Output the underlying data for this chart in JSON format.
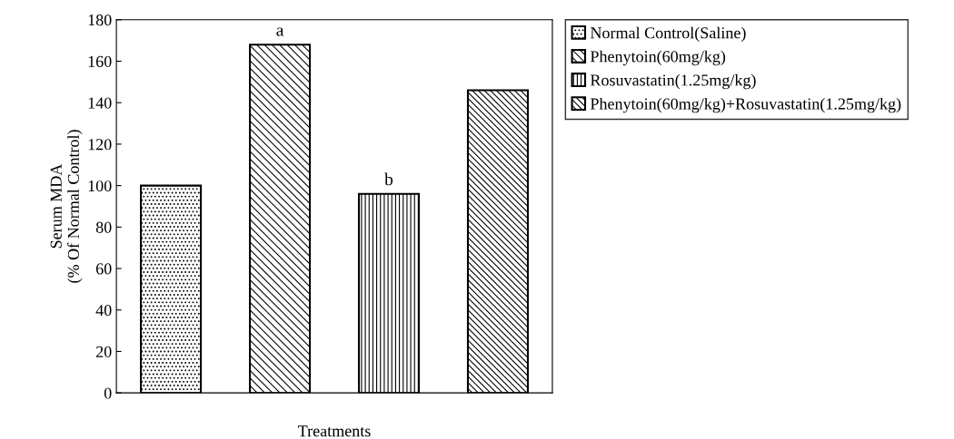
{
  "chart_data": {
    "type": "bar",
    "categories": [
      null,
      null,
      null,
      null
    ],
    "series": [
      {
        "name": "Normal Control(Saline)",
        "color": "#000000",
        "values": [
          100,
          null,
          null,
          null
        ]
      },
      {
        "name": "Phenytoin(60mg/kg)",
        "color": "#000000",
        "values": [
          null,
          168,
          null,
          null
        ]
      },
      {
        "name": "Rosuvastatin(1.25mg/kg)",
        "color": "#000000",
        "values": [
          null,
          null,
          96,
          null
        ]
      },
      {
        "name": "Phenytoin(60mg/kg)+Rosuvastatin(1.25mg/kg)",
        "color": "#000000",
        "values": [
          null,
          null,
          null,
          146
        ]
      }
    ],
    "xlabel": "Treatments",
    "ylabel": "Serum MDA\n(% Of Normal Control)",
    "ylim": [
      0,
      180
    ],
    "yticks": [
      0,
      20,
      40,
      60,
      80,
      100,
      120,
      140,
      160,
      180
    ],
    "annotations": [
      {
        "text": "a",
        "y": 168
      },
      {
        "text": "b",
        "y": 96
      }
    ],
    "legend": "right",
    "grid": false
  }
}
